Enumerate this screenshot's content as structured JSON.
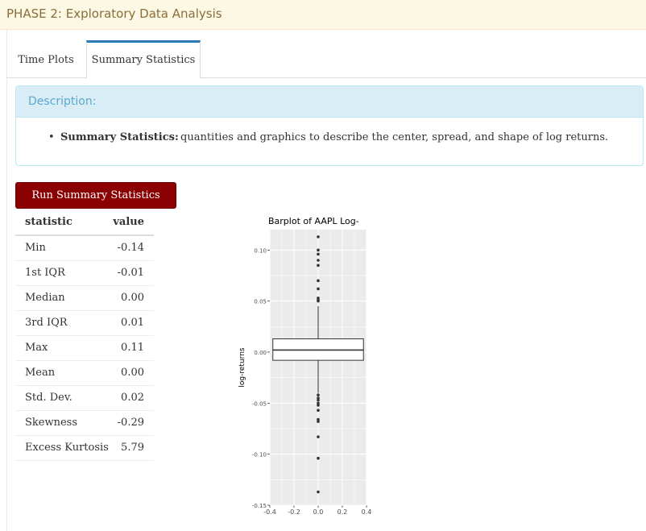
{
  "header": {
    "title": "PHASE 2: Exploratory Data Analysis"
  },
  "tabs": [
    {
      "label": "Time Plots",
      "active": false
    },
    {
      "label": "Summary Statistics",
      "active": true
    }
  ],
  "description": {
    "heading": "Description:",
    "item_label": "Summary Statistics:",
    "item_text": "quantities and graphics to describe the center, spread, and shape of log returns."
  },
  "run_button": {
    "label": "Run Summary Statistics"
  },
  "stats_table": {
    "headers": {
      "statistic": "statistic",
      "value": "value"
    },
    "rows": [
      {
        "statistic": "Min",
        "value": "-0.14"
      },
      {
        "statistic": "1st IQR",
        "value": "-0.01"
      },
      {
        "statistic": "Median",
        "value": "0.00"
      },
      {
        "statistic": "3rd IQR",
        "value": "0.01"
      },
      {
        "statistic": "Max",
        "value": "0.11"
      },
      {
        "statistic": "Mean",
        "value": "0.00"
      },
      {
        "statistic": "Std. Dev.",
        "value": "0.02"
      },
      {
        "statistic": "Skewness",
        "value": "-0.29"
      },
      {
        "statistic": "Excess Kurtosis",
        "value": "5.79"
      }
    ]
  },
  "chart_data": {
    "type": "box",
    "title": "Barplot of  AAPL Log-",
    "xlabel": "",
    "ylabel": "log-returns",
    "xlim": [
      -0.4,
      0.4
    ],
    "ylim": [
      -0.15,
      0.12
    ],
    "x_ticks": [
      "-0.4",
      "-0.2",
      "0.0",
      "0.2",
      "0.4"
    ],
    "y_ticks": [
      "-0.15",
      "-0.10",
      "-0.05",
      "0.00",
      "0.05",
      "0.10"
    ],
    "y_tick_values": [
      -0.15,
      -0.1,
      -0.05,
      0.0,
      0.05,
      0.1
    ],
    "x_tick_values": [
      -0.4,
      -0.2,
      0.0,
      0.2,
      0.4
    ],
    "box": {
      "x": 0.0,
      "q1": -0.008,
      "median": 0.002,
      "q3": 0.013,
      "whisker_low": -0.04,
      "whisker_high": 0.045,
      "halfwidth": 0.375
    },
    "outliers": [
      0.113,
      0.1,
      0.096,
      0.09,
      0.085,
      0.07,
      0.062,
      0.053,
      0.051,
      0.05,
      -0.042,
      -0.045,
      -0.047,
      -0.05,
      -0.052,
      -0.057,
      -0.066,
      -0.068,
      -0.083,
      -0.104,
      -0.137
    ],
    "colors": {
      "panel": "#ebebeb",
      "grid": "#ffffff",
      "box_fill": "#ffffff",
      "ink": "#333333"
    }
  }
}
